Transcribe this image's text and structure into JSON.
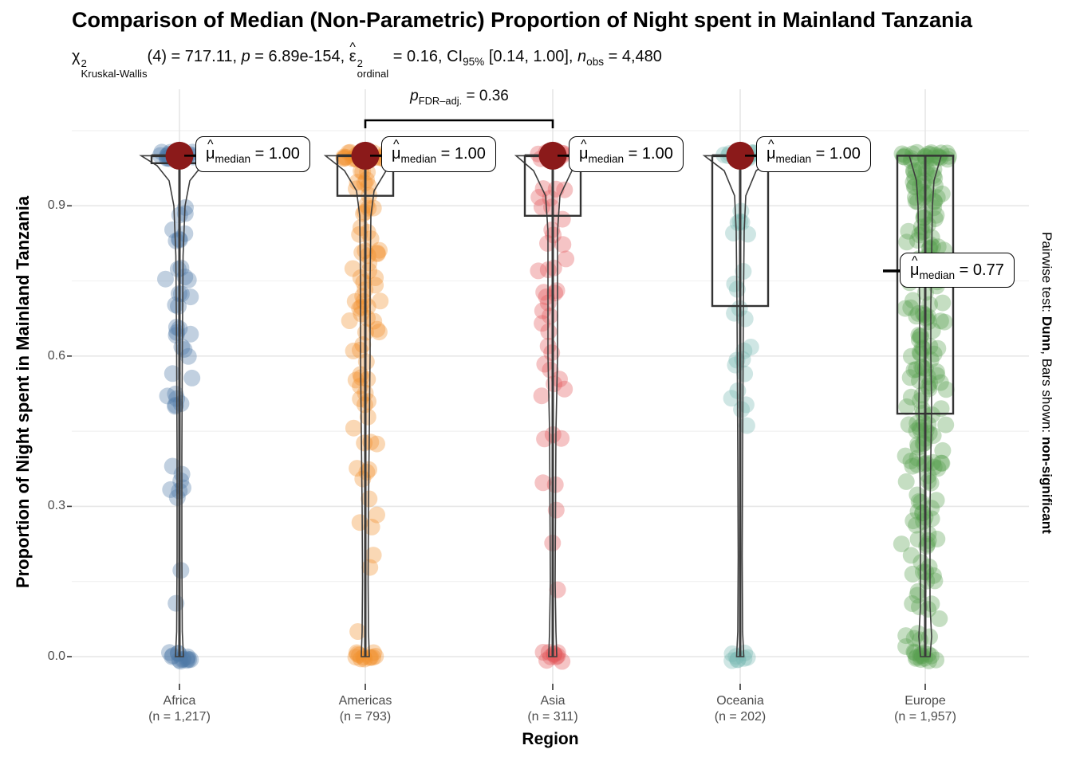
{
  "figure": {
    "title": "Comparison of Median (Non-Parametric) Proportion of Night spent in Mainland Tanzania"
  },
  "chart_data": {
    "type": "violin-box-jitter",
    "xlabel": "Region",
    "ylabel": "Proportion of Night spent in Mainland Tanzania",
    "ylim": [
      0,
      1.05
    ],
    "yticks": [
      "0.0",
      "0.3",
      "0.6",
      "0.9"
    ],
    "ytick_values": [
      0.0,
      0.3,
      0.6,
      0.9
    ],
    "grid": "on",
    "subtitle_segments": [
      {
        "text": "χ",
        "sup": "2",
        "sub": "Kruskal-Wallis"
      },
      {
        "text": "(4) = 717.11, "
      },
      {
        "text": "p",
        "italic": true
      },
      {
        "text": " = 6.89e-154, "
      },
      {
        "text": "ε",
        "hat": true,
        "sup": "2",
        "sub": "ordinal"
      },
      {
        "text": " = 0.16, "
      },
      {
        "text": "CI",
        "sub": "95%"
      },
      {
        "text": " [0.14, 1.00], "
      },
      {
        "text": "n",
        "italic": true,
        "sub": "obs"
      },
      {
        "text": " = 4,480"
      }
    ],
    "caption_segments": [
      {
        "text": "Pairwise test: "
      },
      {
        "text": "Dunn",
        "bold": true
      },
      {
        "text": ", Bars shown: "
      },
      {
        "text": "non-significant",
        "bold": true
      }
    ],
    "stats": {
      "test": "Kruskal-Wallis",
      "chi_squared": 717.11,
      "df": 4,
      "p_value": "6.89e-154",
      "epsilon_squared_ordinal": 0.16,
      "ci_95": [
        0.14,
        1.0
      ],
      "n_obs": 4480,
      "pairwise_test": "Dunn",
      "bars_shown": "non-significant"
    },
    "pairwise_annotation": {
      "segments": [
        {
          "text": "p",
          "italic": true,
          "sub": "FDR–adj."
        },
        {
          "text": " = 0.36"
        }
      ],
      "value": 0.36,
      "from_group": "Americas",
      "to_group": "Asia"
    },
    "median_point_color": "#8b1a1a",
    "groups": [
      {
        "name": "Africa",
        "n_label": "(n = 1,217)",
        "n": 1217,
        "color": "#4e79a7",
        "median": 1.0,
        "label_side": "right",
        "label_segments": [
          {
            "text": "μ",
            "hat": true,
            "sub": "median"
          },
          {
            "text": " = 1.00"
          }
        ],
        "box": {
          "q1": 0.985,
          "q3": 1.0,
          "median": 1.0,
          "whisker_low": 0.0,
          "whisker_high": 1.0
        },
        "violin": [
          [
            1.0,
            48
          ],
          [
            0.98,
            28
          ],
          [
            0.95,
            13
          ],
          [
            0.9,
            7
          ],
          [
            0.8,
            4.5
          ],
          [
            0.6,
            3.5
          ],
          [
            0.4,
            3
          ],
          [
            0.2,
            3
          ],
          [
            0.05,
            3.5
          ],
          [
            0.0,
            5
          ]
        ],
        "scatter_bands": [
          [
            0.84,
            0.9,
            5
          ],
          [
            0.74,
            0.84,
            8
          ],
          [
            0.6,
            0.74,
            12
          ],
          [
            0.48,
            0.6,
            9
          ],
          [
            0.28,
            0.45,
            7
          ],
          [
            0.1,
            0.25,
            2
          ]
        ],
        "top_cluster": 22,
        "zero_cluster": 14,
        "jitter": 20,
        "top_spread": 24,
        "zero_spread": 14
      },
      {
        "name": "Americas",
        "n_label": "(n = 793)",
        "n": 793,
        "color": "#f28e2b",
        "median": 1.0,
        "label_side": "right",
        "label_segments": [
          {
            "text": "μ",
            "hat": true,
            "sub": "median"
          },
          {
            "text": " = 1.00"
          }
        ],
        "box": {
          "q1": 0.92,
          "q3": 1.0,
          "median": 1.0,
          "whisker_low": 0.0,
          "whisker_high": 1.0
        },
        "violin": [
          [
            1.0,
            50
          ],
          [
            0.97,
            26
          ],
          [
            0.93,
            11
          ],
          [
            0.88,
            7
          ],
          [
            0.75,
            6
          ],
          [
            0.6,
            6
          ],
          [
            0.45,
            5
          ],
          [
            0.3,
            4
          ],
          [
            0.15,
            3.5
          ],
          [
            0.05,
            4
          ],
          [
            0.0,
            5
          ]
        ],
        "scatter_bands": [
          [
            0.9,
            0.97,
            10
          ],
          [
            0.8,
            0.9,
            14
          ],
          [
            0.68,
            0.8,
            16
          ],
          [
            0.55,
            0.68,
            14
          ],
          [
            0.42,
            0.55,
            10
          ],
          [
            0.28,
            0.42,
            6
          ],
          [
            0.12,
            0.28,
            4
          ],
          [
            0.05,
            0.1,
            1
          ]
        ],
        "top_cluster": 24,
        "zero_cluster": 12,
        "jitter": 22,
        "top_spread": 28,
        "zero_spread": 14
      },
      {
        "name": "Asia",
        "n_label": "(n = 311)",
        "n": 311,
        "color": "#e15759",
        "median": 1.0,
        "label_side": "right",
        "label_segments": [
          {
            "text": "μ",
            "hat": true,
            "sub": "median"
          },
          {
            "text": " = 1.00"
          }
        ],
        "box": {
          "q1": 0.88,
          "q3": 1.0,
          "median": 1.0,
          "whisker_low": 0.0,
          "whisker_high": 1.0
        },
        "violin": [
          [
            1.0,
            46
          ],
          [
            0.97,
            24
          ],
          [
            0.92,
            9
          ],
          [
            0.85,
            6
          ],
          [
            0.7,
            6
          ],
          [
            0.6,
            6
          ],
          [
            0.45,
            4
          ],
          [
            0.3,
            3.5
          ],
          [
            0.15,
            3
          ],
          [
            0.05,
            4
          ],
          [
            0.0,
            5
          ]
        ],
        "scatter_bands": [
          [
            0.88,
            0.95,
            7
          ],
          [
            0.78,
            0.88,
            6
          ],
          [
            0.63,
            0.78,
            12
          ],
          [
            0.52,
            0.63,
            8
          ],
          [
            0.38,
            0.5,
            3
          ],
          [
            0.28,
            0.36,
            3
          ],
          [
            0.2,
            0.26,
            1
          ],
          [
            0.12,
            0.16,
            1
          ]
        ],
        "top_cluster": 16,
        "zero_cluster": 10,
        "jitter": 20,
        "top_spread": 22,
        "zero_spread": 13
      },
      {
        "name": "Oceania",
        "n_label": "(n = 202)",
        "n": 202,
        "color": "#76b7b2",
        "median": 1.0,
        "label_side": "right",
        "label_segments": [
          {
            "text": "μ",
            "hat": true,
            "sub": "median"
          },
          {
            "text": " = 1.00"
          }
        ],
        "box": {
          "q1": 0.7,
          "q3": 1.0,
          "median": 1.0,
          "whisker_low": 0.0,
          "whisker_high": 1.0
        },
        "violin": [
          [
            1.0,
            45
          ],
          [
            0.97,
            20
          ],
          [
            0.92,
            7
          ],
          [
            0.85,
            5
          ],
          [
            0.7,
            4
          ],
          [
            0.55,
            3.5
          ],
          [
            0.4,
            3
          ],
          [
            0.2,
            2.5
          ],
          [
            0.05,
            3
          ],
          [
            0.0,
            4.5
          ]
        ],
        "scatter_bands": [
          [
            0.8,
            0.9,
            6
          ],
          [
            0.68,
            0.8,
            5
          ],
          [
            0.55,
            0.68,
            7
          ],
          [
            0.43,
            0.55,
            5
          ]
        ],
        "top_cluster": 14,
        "zero_cluster": 8,
        "jitter": 18,
        "top_spread": 22,
        "zero_spread": 12
      },
      {
        "name": "Europe",
        "n_label": "(n = 1,957)",
        "n": 1957,
        "color": "#59a14f",
        "median": 0.77,
        "label_side": "left",
        "label_segments": [
          {
            "text": "μ",
            "hat": true,
            "sub": "median"
          },
          {
            "text": " = 0.77"
          }
        ],
        "box": {
          "q1": 0.485,
          "q3": 1.0,
          "median": 0.77,
          "whisker_low": 0.0,
          "whisker_high": 1.0
        },
        "violin": [
          [
            1.0,
            20
          ],
          [
            0.95,
            11
          ],
          [
            0.9,
            9
          ],
          [
            0.8,
            8
          ],
          [
            0.7,
            7
          ],
          [
            0.6,
            7
          ],
          [
            0.5,
            8
          ],
          [
            0.4,
            7
          ],
          [
            0.3,
            6
          ],
          [
            0.2,
            6
          ],
          [
            0.1,
            6
          ],
          [
            0.04,
            8
          ],
          [
            0.0,
            6
          ]
        ],
        "scatter_bands": [
          [
            0.9,
            0.99,
            30
          ],
          [
            0.78,
            0.9,
            28
          ],
          [
            0.66,
            0.78,
            26
          ],
          [
            0.54,
            0.66,
            26
          ],
          [
            0.42,
            0.54,
            26
          ],
          [
            0.3,
            0.42,
            22
          ],
          [
            0.18,
            0.3,
            18
          ],
          [
            0.06,
            0.18,
            14
          ],
          [
            0.02,
            0.06,
            6
          ]
        ],
        "top_cluster": 22,
        "zero_cluster": 14,
        "jitter": 30,
        "top_spread": 32,
        "zero_spread": 16
      }
    ],
    "colors": {
      "grid_major": "#e6e6e6",
      "grid_minor": "#f1f1f1",
      "box_stroke": "#333333",
      "violin_stroke": "#3d3d3d",
      "whisker": "#3a3a3a",
      "tick_text": "#4d4d4d"
    }
  }
}
